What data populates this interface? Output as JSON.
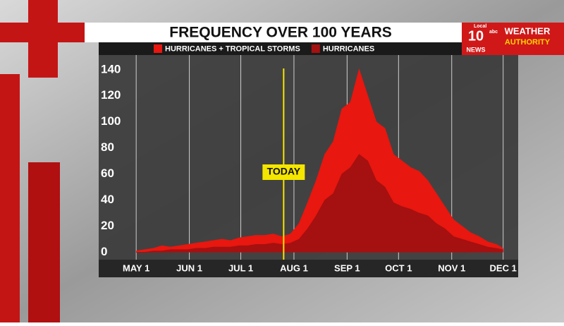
{
  "brand": {
    "station_top": "Local",
    "station_number": "10",
    "network": "abc",
    "station_bottom": "NEWS",
    "weather_top": "WEATHER",
    "weather_bottom": "AUTHORITY"
  },
  "chart_data": {
    "type": "area",
    "title": "FREQUENCY OVER 100 YEARS",
    "x": [
      0,
      5,
      10,
      15,
      20,
      25,
      30,
      35,
      40,
      45,
      50,
      55,
      60,
      65,
      70,
      75,
      80,
      85,
      90,
      95,
      100,
      105,
      110,
      115,
      120,
      125,
      130,
      135,
      140,
      145,
      150,
      155,
      160,
      165,
      170,
      175,
      180,
      185,
      190,
      195,
      200,
      205,
      210,
      214
    ],
    "series": [
      {
        "name": "HURRICANES + TROPICAL STORMS",
        "color": "#e8170f",
        "values": [
          1,
          2,
          3,
          5,
          4,
          5,
          6,
          7,
          8,
          9,
          10,
          9,
          11,
          12,
          13,
          13,
          14,
          12,
          14,
          22,
          38,
          55,
          75,
          85,
          110,
          115,
          140,
          120,
          100,
          95,
          75,
          70,
          65,
          62,
          55,
          45,
          35,
          25,
          20,
          15,
          12,
          8,
          6,
          3
        ]
      },
      {
        "name": "HURRICANES",
        "color": "#a51010",
        "values": [
          0,
          0,
          1,
          1,
          2,
          2,
          2,
          3,
          3,
          4,
          4,
          4,
          5,
          5,
          6,
          6,
          7,
          6,
          7,
          10,
          18,
          28,
          40,
          45,
          60,
          65,
          75,
          70,
          55,
          50,
          38,
          35,
          33,
          30,
          28,
          22,
          18,
          12,
          10,
          8,
          6,
          4,
          3,
          2
        ]
      }
    ],
    "xlim": [
      -5,
      217
    ],
    "xticks": [
      {
        "value": 0,
        "label": "MAY 1"
      },
      {
        "value": 31,
        "label": "JUN 1"
      },
      {
        "value": 61,
        "label": "JUL 1"
      },
      {
        "value": 92,
        "label": "AUG 1"
      },
      {
        "value": 123,
        "label": "SEP 1"
      },
      {
        "value": 153,
        "label": "OCT 1"
      },
      {
        "value": 184,
        "label": "NOV 1"
      },
      {
        "value": 214,
        "label": "DEC 1"
      }
    ],
    "ylim": [
      -4,
      148
    ],
    "yticks": [
      0,
      20,
      40,
      60,
      80,
      100,
      120,
      140
    ],
    "grid": true,
    "annotation": {
      "text": "TODAY",
      "x": 86,
      "color": "#f5e600"
    }
  }
}
